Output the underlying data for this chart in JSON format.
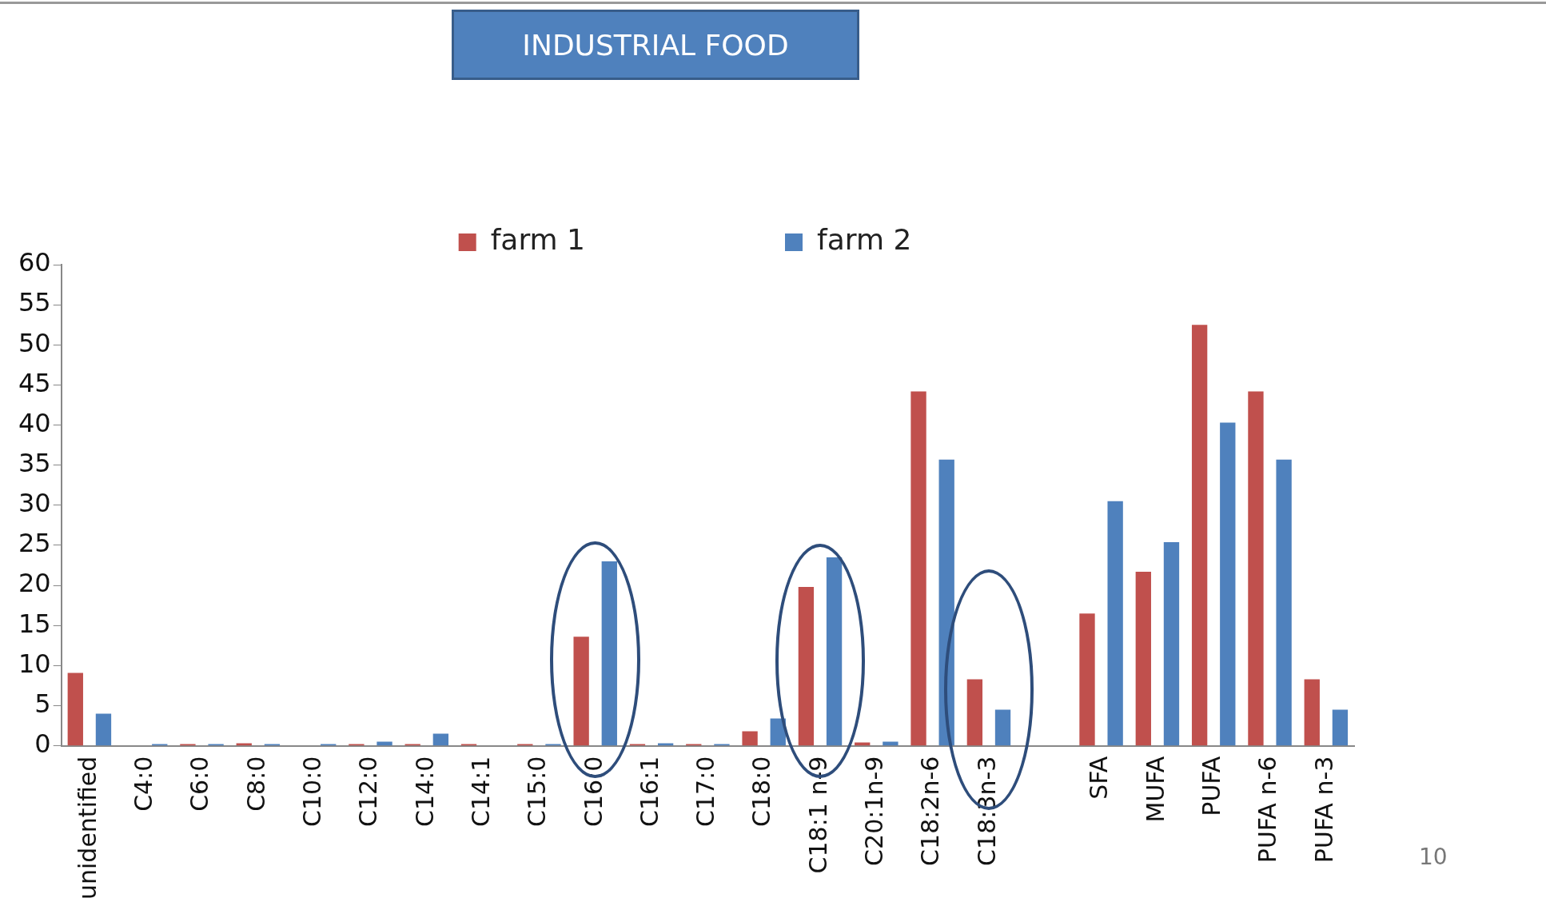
{
  "chart_data": {
    "type": "bar",
    "title": "INDUSTRIAL FOOD",
    "categories": [
      "unidentified",
      "C4:0",
      "C6:0",
      "C8:0",
      "C10:0",
      "C12:0",
      "C14:0",
      "C14:1",
      "C15:0",
      "C16:0",
      "C16:1",
      "C17:0",
      "C18:0",
      "C18:1 n-9",
      "C20:1n-9",
      "C18:2n-6",
      "C18:3n-3",
      null,
      "SFA",
      "MUFA",
      "PUFA",
      "PUFA n-6",
      "PUFA n-3"
    ],
    "series": [
      {
        "name": "farm 1",
        "color": "#c0504d",
        "values": [
          9.1,
          0,
          0.2,
          0.3,
          0,
          0.2,
          0.2,
          0.2,
          0.2,
          13.6,
          0.2,
          0.2,
          1.8,
          19.8,
          0.4,
          44.2,
          8.3,
          null,
          16.5,
          21.7,
          52.5,
          44.2,
          8.3
        ]
      },
      {
        "name": "farm 2",
        "color": "#4f81bd",
        "values": [
          4.0,
          0.2,
          0.2,
          0.2,
          0.2,
          0.5,
          1.5,
          0,
          0.2,
          23.0,
          0.3,
          0.2,
          3.4,
          23.5,
          0.5,
          35.7,
          4.5,
          null,
          30.5,
          25.4,
          40.3,
          35.7,
          4.5
        ]
      }
    ],
    "ylim": [
      0,
      60
    ],
    "yticks": [
      0,
      5,
      10,
      15,
      20,
      25,
      30,
      35,
      40,
      45,
      50,
      55,
      60
    ],
    "grid": false,
    "legend": "top",
    "annotations": [
      "10"
    ]
  }
}
